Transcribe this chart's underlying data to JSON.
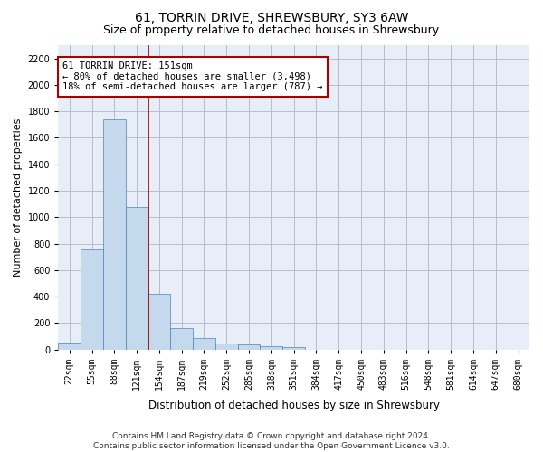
{
  "title_line1": "61, TORRIN DRIVE, SHREWSBURY, SY3 6AW",
  "title_line2": "Size of property relative to detached houses in Shrewsbury",
  "xlabel": "Distribution of detached houses by size in Shrewsbury",
  "ylabel": "Number of detached properties",
  "bar_values": [
    55,
    760,
    1740,
    1075,
    420,
    160,
    85,
    48,
    38,
    28,
    18,
    0,
    0,
    0,
    0,
    0,
    0,
    0,
    0,
    0
  ],
  "bin_labels": [
    "22sqm",
    "55sqm",
    "88sqm",
    "121sqm",
    "154sqm",
    "187sqm",
    "219sqm",
    "252sqm",
    "285sqm",
    "318sqm",
    "351sqm",
    "384sqm",
    "417sqm",
    "450sqm",
    "483sqm",
    "516sqm",
    "548sqm",
    "581sqm",
    "614sqm",
    "647sqm",
    "680sqm"
  ],
  "bar_color": "#c5d9ed",
  "bar_edge_color": "#4f81bd",
  "vline_color": "#aa0000",
  "annotation_text": "61 TORRIN DRIVE: 151sqm\n← 80% of detached houses are smaller (3,498)\n18% of semi-detached houses are larger (787) →",
  "annotation_box_color": "#ffffff",
  "annotation_box_edge": "#aa0000",
  "ylim": [
    0,
    2300
  ],
  "yticks": [
    0,
    200,
    400,
    600,
    800,
    1000,
    1200,
    1400,
    1600,
    1800,
    2000,
    2200
  ],
  "grid_color": "#bbbbcc",
  "background_color": "#e8eef8",
  "footnote": "Contains HM Land Registry data © Crown copyright and database right 2024.\nContains public sector information licensed under the Open Government Licence v3.0.",
  "title_fontsize": 10,
  "subtitle_fontsize": 9,
  "ylabel_fontsize": 8,
  "xlabel_fontsize": 8.5,
  "tick_fontsize": 7,
  "annot_fontsize": 7.5
}
